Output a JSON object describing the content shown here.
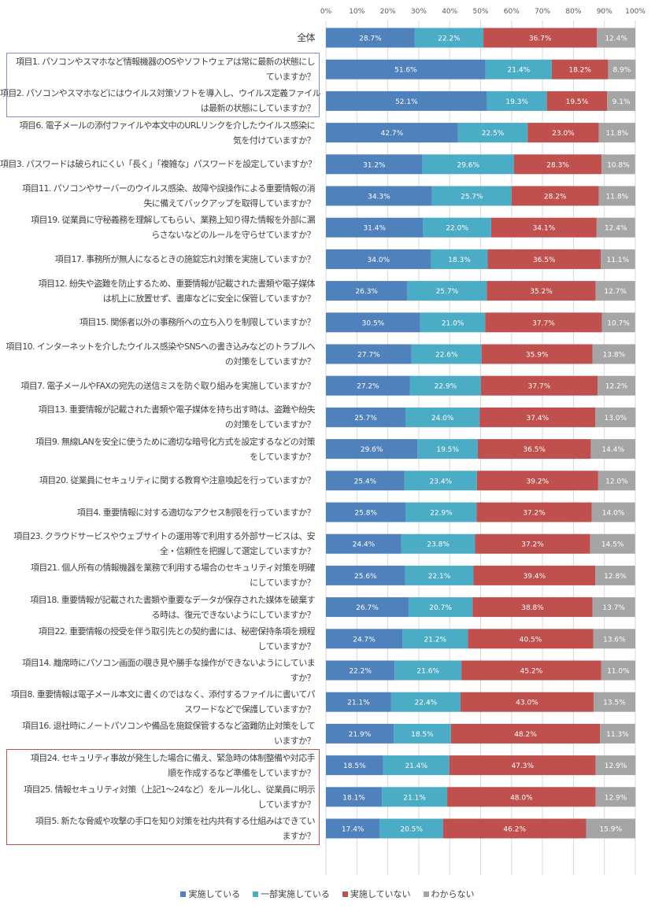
{
  "chart_data": {
    "type": "bar",
    "orientation": "horizontal",
    "stacked": true,
    "xlim": [
      0,
      100
    ],
    "x_ticks": [
      "0%",
      "10%",
      "20%",
      "30%",
      "40%",
      "50%",
      "60%",
      "70%",
      "80%",
      "90%",
      "100%"
    ],
    "grid": true,
    "legend_position": "bottom",
    "series": [
      {
        "name": "実施している",
        "color": "#4F81BD"
      },
      {
        "name": "一部実施している",
        "color": "#4BACC6"
      },
      {
        "name": "実施していない",
        "color": "#C0504D"
      },
      {
        "name": "わからない",
        "color": "#A5A5A5"
      }
    ],
    "rows": [
      {
        "label": [
          "全体"
        ],
        "values": [
          28.7,
          22.2,
          36.7,
          12.4
        ]
      },
      {
        "label": [
          "項目1. パソコンやスマホなど情報機器のOSやソフトウェアは常に最新の状態にし",
          "ていますか？"
        ],
        "values": [
          51.6,
          21.4,
          18.2,
          8.9
        ]
      },
      {
        "label": [
          "項目2. パソコンやスマホなどにはウイルス対策ソフトを導入し、ウイルス定義ファイル",
          "は最新の状態にしていますか？"
        ],
        "values": [
          52.1,
          19.3,
          19.5,
          9.1
        ]
      },
      {
        "label": [
          "項目6. 電子メールの添付ファイルや本文中のURLリンクを介したウイルス感染に",
          "気を付けていますか？"
        ],
        "values": [
          42.7,
          22.5,
          23.0,
          11.8
        ]
      },
      {
        "label": [
          "項目3. パスワードは破られにくい「長く」「複雑な」パスワードを設定していますか？"
        ],
        "values": [
          31.2,
          29.6,
          28.3,
          10.8
        ]
      },
      {
        "label": [
          "項目11. パソコンやサーバーのウイルス感染、故障や誤操作による重要情報の消",
          "失に備えてバックアップを取得していますか？"
        ],
        "values": [
          34.3,
          25.7,
          28.2,
          11.8
        ]
      },
      {
        "label": [
          "項目19. 従業員に守秘義務を理解してもらい、業務上知り得た情報を外部に漏",
          "らさないなどのルールを守らせていますか？"
        ],
        "values": [
          31.4,
          22.0,
          34.1,
          12.4
        ]
      },
      {
        "label": [
          "項目17. 事務所が無人になるときの施錠忘れ対策を実施していますか？"
        ],
        "values": [
          34.0,
          18.3,
          36.5,
          11.1
        ]
      },
      {
        "label": [
          "項目12. 紛失や盗難を防止するため、重要情報が記載された書類や電子媒体",
          "は机上に放置せず、書庫などに安全に保管していますか？"
        ],
        "values": [
          26.3,
          25.7,
          35.2,
          12.7
        ]
      },
      {
        "label": [
          "項目15. 関係者以外の事務所への立ち入りを制限していますか？"
        ],
        "values": [
          30.5,
          21.0,
          37.7,
          10.7
        ]
      },
      {
        "label": [
          "項目10. インターネットを介したウイルス感染やSNSへの書き込みなどのトラブルへ",
          "の対策をしていますか？"
        ],
        "values": [
          27.7,
          22.6,
          35.9,
          13.8
        ]
      },
      {
        "label": [
          "項目7. 電子メールやFAXの宛先の送信ミスを防ぐ取り組みを実施していますか？"
        ],
        "values": [
          27.2,
          22.9,
          37.7,
          12.2
        ]
      },
      {
        "label": [
          "項目13. 重要情報が記載された書類や電子媒体を持ち出す時は、盗難や紛失",
          "の対策をしていますか？"
        ],
        "values": [
          25.7,
          24.0,
          37.4,
          13.0
        ]
      },
      {
        "label": [
          "項目9. 無線LANを安全に使うために適切な暗号化方式を設定するなどの対策",
          "をしていますか？"
        ],
        "values": [
          29.6,
          19.5,
          36.5,
          14.4
        ]
      },
      {
        "label": [
          "項目20. 従業員にセキュリティに関する教育や注意喚起を行っていますか？"
        ],
        "values": [
          25.4,
          23.4,
          39.2,
          12.0
        ]
      },
      {
        "label": [
          "項目4. 重要情報に対する適切なアクセス制限を行っていますか？"
        ],
        "values": [
          25.8,
          22.9,
          37.2,
          14.0
        ]
      },
      {
        "label": [
          "項目23. クラウドサービスやウェブサイトの運用等で利用する外部サービスは、安",
          "全・信頼性を把握して選定していますか？"
        ],
        "values": [
          24.4,
          23.8,
          37.2,
          14.5
        ]
      },
      {
        "label": [
          "項目21. 個人所有の情報機器を業務で利用する場合のセキュリティ対策を明確",
          "にしていますか？"
        ],
        "values": [
          25.6,
          22.1,
          39.4,
          12.8
        ]
      },
      {
        "label": [
          "項目18. 重要情報が記載された書類や重要なデータが保存された媒体を破棄す",
          "る時は、復元できないようにしていますか？"
        ],
        "values": [
          26.7,
          20.7,
          38.8,
          13.7
        ]
      },
      {
        "label": [
          "項目22. 重要情報の授受を伴う取引先との契約書には、秘密保持条項を規程",
          "していますか？"
        ],
        "values": [
          24.7,
          21.2,
          40.5,
          13.6
        ]
      },
      {
        "label": [
          "項目14. 離席時にパソコン画面の覗き見や勝手な操作ができないようにしていま",
          "すか？"
        ],
        "values": [
          22.2,
          21.6,
          45.2,
          11.0
        ]
      },
      {
        "label": [
          "項目8. 重要情報は電子メール本文に書くのではなく、添付するファイルに書いてパ",
          "スワードなどで保護していますか？"
        ],
        "values": [
          21.1,
          22.4,
          43.0,
          13.5
        ]
      },
      {
        "label": [
          "項目16. 退社時にノートパソコンや備品を施錠保管するなど盗難防止対策をして",
          "いますか？"
        ],
        "values": [
          21.9,
          18.5,
          48.2,
          11.3
        ]
      },
      {
        "label": [
          "項目24. セキュリティ事故が発生した場合に備え、緊急時の体制整備や対応手",
          "順を作成するなど準備をしていますか？"
        ],
        "values": [
          18.5,
          21.4,
          47.3,
          12.9
        ]
      },
      {
        "label": [
          "項目25. 情報セキュリティ対策（上記1～24など）をルール化し、従業員に明示",
          "していますか？"
        ],
        "values": [
          18.1,
          21.1,
          48.0,
          12.9
        ]
      },
      {
        "label": [
          "項目5. 新たな脅威や攻撃の手口を知り対策を社内共有する仕組みはできてい",
          "ますか？"
        ],
        "values": [
          17.4,
          20.5,
          46.2,
          15.9
        ]
      }
    ],
    "highlight_boxes": [
      {
        "rows": [
          1,
          2
        ],
        "color": "#7F8FCF"
      },
      {
        "rows": [
          23,
          24,
          25
        ],
        "color": "#C0504D"
      }
    ]
  }
}
